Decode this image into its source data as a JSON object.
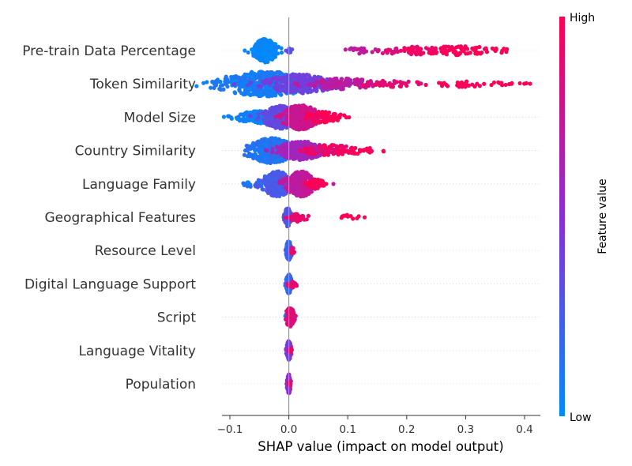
{
  "chart_data": {
    "type": "scatter",
    "subtype": "shap-beeswarm",
    "xlabel": "SHAP value (impact on model output)",
    "xlim": [
      -0.12,
      0.425
    ],
    "xticks": [
      -0.1,
      0.0,
      0.1,
      0.2,
      0.3,
      0.4
    ],
    "xtick_labels": [
      "−0.1",
      "0.0",
      "0.1",
      "0.2",
      "0.3",
      "0.4"
    ],
    "zero_line": 0.0,
    "colorbar": {
      "label": "Feature value",
      "high": "High",
      "low": "Low",
      "low_color": "#008bfb",
      "high_color": "#ff0052"
    },
    "features": [
      {
        "name": "Pre-train Data Percentage",
        "clusters": [
          {
            "center": -0.04,
            "spread": 0.01,
            "count": 300,
            "width": 15,
            "fv": 0.02
          },
          {
            "center": 0.0,
            "spread": 0.003,
            "count": 12,
            "width": 3,
            "fv": 0.3
          },
          {
            "center": 0.12,
            "spread": 0.012,
            "count": 18,
            "width": 4,
            "fv": 0.72
          },
          {
            "center": 0.17,
            "spread": 0.012,
            "count": 16,
            "width": 4,
            "fv": 0.82
          },
          {
            "center": 0.22,
            "spread": 0.025,
            "count": 55,
            "width": 5,
            "fv": 0.92
          },
          {
            "center": 0.29,
            "spread": 0.03,
            "count": 75,
            "width": 6,
            "fv": 0.98
          },
          {
            "center": 0.35,
            "spread": 0.015,
            "count": 10,
            "width": 3,
            "fv": 1.0
          }
        ]
      },
      {
        "name": "Token Similarity",
        "clusters": [
          {
            "center": -0.04,
            "spread": 0.04,
            "count": 450,
            "width": 16,
            "fv": 0.08
          },
          {
            "center": 0.02,
            "spread": 0.03,
            "count": 250,
            "width": 12,
            "fv": 0.4
          },
          {
            "center": 0.09,
            "spread": 0.03,
            "count": 110,
            "width": 7,
            "fv": 0.7
          },
          {
            "center": 0.17,
            "spread": 0.03,
            "count": 40,
            "width": 4,
            "fv": 0.9
          },
          {
            "center": 0.3,
            "spread": 0.03,
            "count": 28,
            "width": 4,
            "fv": 1.0
          },
          {
            "center": 0.375,
            "spread": 0.018,
            "count": 12,
            "width": 3,
            "fv": 1.0
          }
        ]
      },
      {
        "name": "Model Size",
        "clusters": [
          {
            "center": -0.05,
            "spread": 0.02,
            "count": 200,
            "width": 8,
            "fv": 0.05
          },
          {
            "center": -0.015,
            "spread": 0.015,
            "count": 250,
            "width": 15,
            "fv": 0.35
          },
          {
            "center": 0.02,
            "spread": 0.015,
            "count": 280,
            "width": 16,
            "fv": 0.78
          },
          {
            "center": 0.06,
            "spread": 0.015,
            "count": 90,
            "width": 7,
            "fv": 1.0
          }
        ]
      },
      {
        "name": "Country Similarity",
        "clusters": [
          {
            "center": -0.03,
            "spread": 0.02,
            "count": 350,
            "width": 16,
            "fv": 0.12
          },
          {
            "center": 0.02,
            "spread": 0.02,
            "count": 250,
            "width": 12,
            "fv": 0.6
          },
          {
            "center": 0.07,
            "spread": 0.025,
            "count": 100,
            "width": 7,
            "fv": 0.92
          },
          {
            "center": 0.12,
            "spread": 0.018,
            "count": 30,
            "width": 4,
            "fv": 1.0
          }
        ]
      },
      {
        "name": "Language Family",
        "clusters": [
          {
            "center": -0.06,
            "spread": 0.01,
            "count": 20,
            "width": 4,
            "fv": 0.1
          },
          {
            "center": -0.02,
            "spread": 0.013,
            "count": 260,
            "width": 16,
            "fv": 0.25
          },
          {
            "center": 0.02,
            "spread": 0.013,
            "count": 260,
            "width": 16,
            "fv": 0.72
          },
          {
            "center": 0.045,
            "spread": 0.008,
            "count": 60,
            "width": 6,
            "fv": 1.0
          }
        ]
      },
      {
        "name": "Geographical Features",
        "clusters": [
          {
            "center": -0.002,
            "spread": 0.003,
            "count": 120,
            "width": 12,
            "fv": 0.3
          },
          {
            "center": 0.015,
            "spread": 0.008,
            "count": 45,
            "width": 6,
            "fv": 0.9
          },
          {
            "center": 0.1,
            "spread": 0.012,
            "count": 12,
            "width": 3,
            "fv": 1.0
          }
        ]
      },
      {
        "name": "Resource Level",
        "clusters": [
          {
            "center": 0.0,
            "spread": 0.0025,
            "count": 140,
            "width": 12,
            "fv": 0.2
          },
          {
            "center": 0.006,
            "spread": 0.002,
            "count": 12,
            "width": 4,
            "fv": 0.9
          }
        ]
      },
      {
        "name": "Digital Language Support",
        "clusters": [
          {
            "center": 0.0,
            "spread": 0.0025,
            "count": 140,
            "width": 12,
            "fv": 0.2
          },
          {
            "center": 0.006,
            "spread": 0.004,
            "count": 18,
            "width": 5,
            "fv": 0.9
          }
        ]
      },
      {
        "name": "Script",
        "clusters": [
          {
            "center": -0.002,
            "spread": 0.002,
            "count": 45,
            "width": 5,
            "fv": 0.1
          },
          {
            "center": 0.002,
            "spread": 0.004,
            "count": 120,
            "width": 12,
            "fv": 0.85
          }
        ]
      },
      {
        "name": "Language Vitality",
        "clusters": [
          {
            "center": 0.0,
            "spread": 0.002,
            "count": 150,
            "width": 12,
            "fv": 0.45
          },
          {
            "center": 0.003,
            "spread": 0.002,
            "count": 12,
            "width": 4,
            "fv": 0.9
          }
        ]
      },
      {
        "name": "Population",
        "clusters": [
          {
            "center": 0.0,
            "spread": 0.0015,
            "count": 150,
            "width": 12,
            "fv": 0.5
          },
          {
            "center": 0.002,
            "spread": 0.0015,
            "count": 8,
            "width": 3,
            "fv": 0.9
          }
        ]
      }
    ]
  }
}
